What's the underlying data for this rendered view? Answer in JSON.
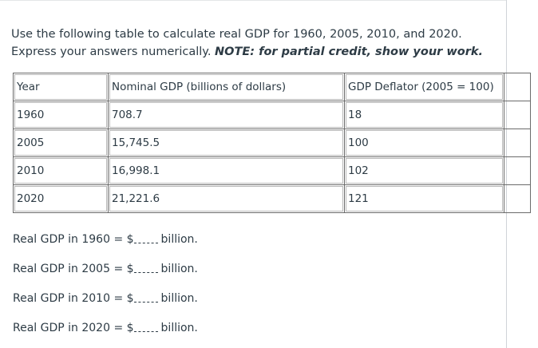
{
  "instructions": {
    "line1": "Use the following table to calculate real GDP for 1960, 2005, 2010, and 2020.",
    "line2_prefix": "Express your answers numerically. ",
    "line2_note": "NOTE: for partial credit, show your work."
  },
  "table": {
    "headers": [
      "Year",
      "Nominal GDP (billions of dollars)",
      "GDP Deflator (2005 = 100)"
    ],
    "rows": [
      [
        "1960",
        "708.7",
        "18"
      ],
      [
        "2005",
        "15,745.5",
        "100"
      ],
      [
        "2010",
        "16,998.1",
        "102"
      ],
      [
        "2020",
        "21,221.6",
        "121"
      ]
    ]
  },
  "answers": [
    {
      "prefix": "Real GDP in 1960 = $",
      "suffix": "billion."
    },
    {
      "prefix": "Real GDP in 2005 = $",
      "suffix": "billion."
    },
    {
      "prefix": "Real GDP in 2010 = $",
      "suffix": "billion."
    },
    {
      "prefix": "Real GDP in 2020 = $",
      "suffix": "billion."
    }
  ]
}
